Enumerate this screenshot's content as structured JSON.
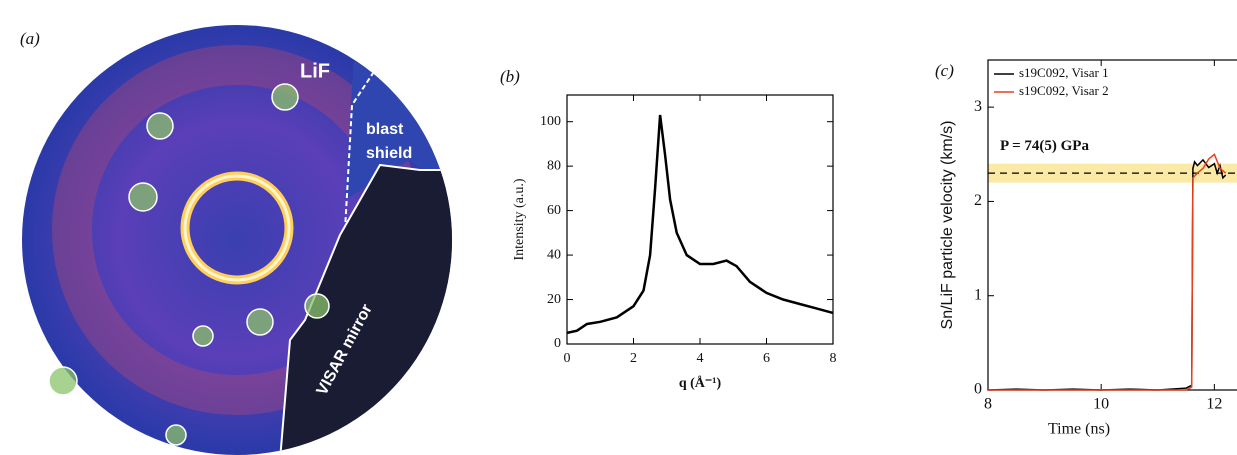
{
  "image_panel": {
    "label": "(a)",
    "annotations": [
      "LiF",
      "blast",
      "shield",
      "VISAR mirror"
    ]
  },
  "chart_data": [
    {
      "type": "line",
      "panel_label": "(b)",
      "x_label": "q (Å⁻¹)",
      "y_label": "Intensity (a.u.)",
      "x": [
        0,
        0.3,
        0.6,
        1,
        1.5,
        2,
        2.3,
        2.5,
        2.65,
        2.8,
        2.95,
        3.1,
        3.3,
        3.6,
        4,
        4.4,
        4.8,
        5.1,
        5.5,
        6,
        6.5,
        7,
        7.5,
        8
      ],
      "values": [
        5,
        6,
        9,
        10,
        12,
        17,
        24,
        40,
        70,
        103,
        85,
        65,
        50,
        40,
        36,
        36,
        37.5,
        35,
        28,
        23,
        20,
        18,
        16,
        14
      ],
      "color": "#000000",
      "xlim": [
        0,
        8
      ],
      "xticks": [
        0,
        2,
        4,
        6,
        8
      ],
      "ylim": [
        0,
        112
      ],
      "yticks": [
        0,
        20,
        40,
        60,
        80,
        100
      ]
    },
    {
      "type": "line",
      "panel_label": "(c)",
      "x_label": "Time (ns)",
      "y_label": "Sn/LiF particle velocity (km/s)",
      "series": [
        {
          "name": "s19C092, Visar 1",
          "color": "#000000",
          "x": [
            8,
            8.5,
            9,
            9.5,
            10,
            10.5,
            11,
            11.5,
            11.6,
            11.62,
            11.65,
            11.7,
            11.8,
            11.9,
            12,
            12.05,
            12.1,
            12.15,
            12.2
          ],
          "values": [
            0,
            0.01,
            0,
            0.01,
            0,
            0.01,
            0,
            0.02,
            0.05,
            2.35,
            2.42,
            2.38,
            2.44,
            2.36,
            2.4,
            2.3,
            2.38,
            2.25,
            2.28
          ]
        },
        {
          "name": "s19C092, Visar 2",
          "color": "#e8401c",
          "x": [
            8,
            8.5,
            9,
            9.5,
            10,
            10.5,
            11,
            11.5,
            11.6,
            11.62,
            11.7,
            11.8,
            11.9,
            12,
            12.1,
            12.2
          ],
          "values": [
            0,
            0,
            0,
            0,
            0,
            0,
            0,
            0,
            0.03,
            2.25,
            2.3,
            2.35,
            2.45,
            2.5,
            2.35,
            2.3
          ]
        }
      ],
      "reference_line": 2.3,
      "band": [
        2.2,
        2.4
      ],
      "band_color": "#fbe9a6",
      "annotation": "P = 74(5) GPa",
      "legend": "upper-left",
      "xlim": [
        8,
        12.4
      ],
      "xticks": [
        8,
        10,
        12
      ],
      "ylim": [
        0,
        3.5
      ],
      "yticks": [
        0,
        1,
        2,
        3
      ]
    }
  ]
}
